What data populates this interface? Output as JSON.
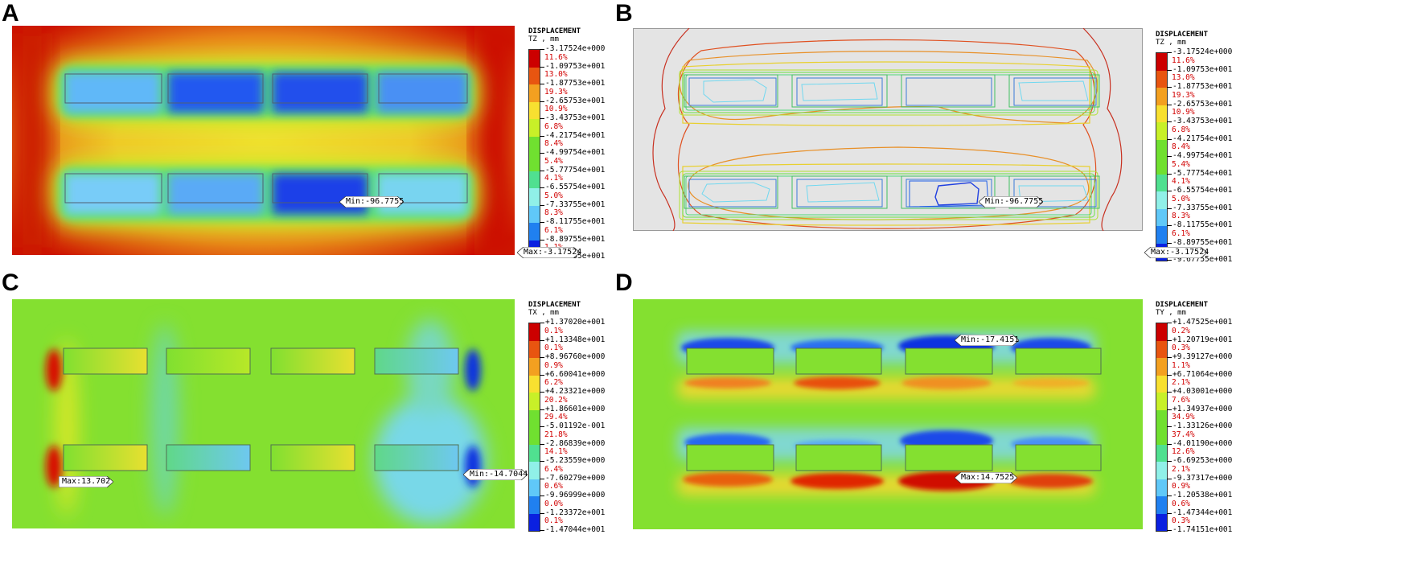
{
  "palette": [
    "#cc0000",
    "#e85510",
    "#f3a020",
    "#f8e030",
    "#c8f028",
    "#70e030",
    "#50e090",
    "#90f0e8",
    "#60c8f8",
    "#2080f0",
    "#0a20e0"
  ],
  "panels": [
    {
      "letter": "A",
      "legend": {
        "title": "DISPLACEMENT",
        "subtitle": "TZ , mm",
        "values": [
          "-3.17524e+000",
          "-1.09753e+001",
          "-1.87753e+001",
          "-2.65753e+001",
          "-3.43753e+001",
          "-4.21754e+001",
          "-4.99754e+001",
          "-5.77754e+001",
          "-6.55754e+001",
          "-7.33755e+001",
          "-8.11755e+001",
          "-8.89755e+001",
          "-9.67755e+001"
        ],
        "percents": [
          "11.6%",
          "13.0%",
          "19.3%",
          "10.9%",
          "6.8%",
          "8.4%",
          "5.4%",
          "4.1%",
          "5.0%",
          "8.3%",
          "6.1%",
          "1.1%"
        ]
      },
      "tags": [
        {
          "text": "Min:-96.7755"
        },
        {
          "text": "Max:-3.17524"
        }
      ]
    },
    {
      "letter": "B",
      "legend": {
        "title": "DISPLACEMENT",
        "subtitle": "TZ , mm",
        "values": [
          "-3.17524e+000",
          "-1.09753e+001",
          "-1.87753e+001",
          "-2.65753e+001",
          "-3.43753e+001",
          "-4.21754e+001",
          "-4.99754e+001",
          "-5.77754e+001",
          "-6.55754e+001",
          "-7.33755e+001",
          "-8.11755e+001",
          "-8.89755e+001",
          "-9.67755e+001"
        ],
        "percents": [
          "11.6%",
          "13.0%",
          "19.3%",
          "10.9%",
          "6.8%",
          "8.4%",
          "5.4%",
          "4.1%",
          "5.0%",
          "8.3%",
          "6.1%",
          "1.1%"
        ]
      },
      "tags": [
        {
          "text": "Min:-96.7755"
        },
        {
          "text": "Max:-3.17524"
        }
      ]
    },
    {
      "letter": "C",
      "legend": {
        "title": "DISPLACEMENT",
        "subtitle": "TX , mm",
        "values": [
          "+1.37020e+001",
          "+1.13348e+001",
          "+8.96760e+000",
          "+6.60041e+000",
          "+4.23321e+000",
          "+1.86601e+000",
          "-5.01192e-001",
          "-2.86839e+000",
          "-5.23559e+000",
          "-7.60279e+000",
          "-9.96999e+000",
          "-1.23372e+001",
          "-1.47044e+001"
        ],
        "percents": [
          "0.1%",
          "0.1%",
          "0.9%",
          "6.2%",
          "20.2%",
          "29.4%",
          "21.8%",
          "14.1%",
          "6.4%",
          "0.6%",
          "0.0%",
          "0.1%"
        ]
      },
      "tags": [
        {
          "text": "Max:13.702"
        },
        {
          "text": "Min:-14.7044"
        }
      ]
    },
    {
      "letter": "D",
      "legend": {
        "title": "DISPLACEMENT",
        "subtitle": "TY , mm",
        "values": [
          "+1.47525e+001",
          "+1.20719e+001",
          "+9.39127e+000",
          "+6.71064e+000",
          "+4.03001e+000",
          "+1.34937e+000",
          "-1.33126e+000",
          "-4.01190e+000",
          "-6.69253e+000",
          "-9.37317e+000",
          "-1.20538e+001",
          "-1.47344e+001",
          "-1.74151e+001"
        ],
        "percents": [
          "0.2%",
          "0.3%",
          "1.1%",
          "2.1%",
          "7.6%",
          "34.9%",
          "37.4%",
          "12.6%",
          "2.1%",
          "0.9%",
          "0.6%",
          "0.3%"
        ]
      },
      "tags": [
        {
          "text": "Min:-17.4151"
        },
        {
          "text": "Max:14.7525"
        }
      ]
    }
  ]
}
